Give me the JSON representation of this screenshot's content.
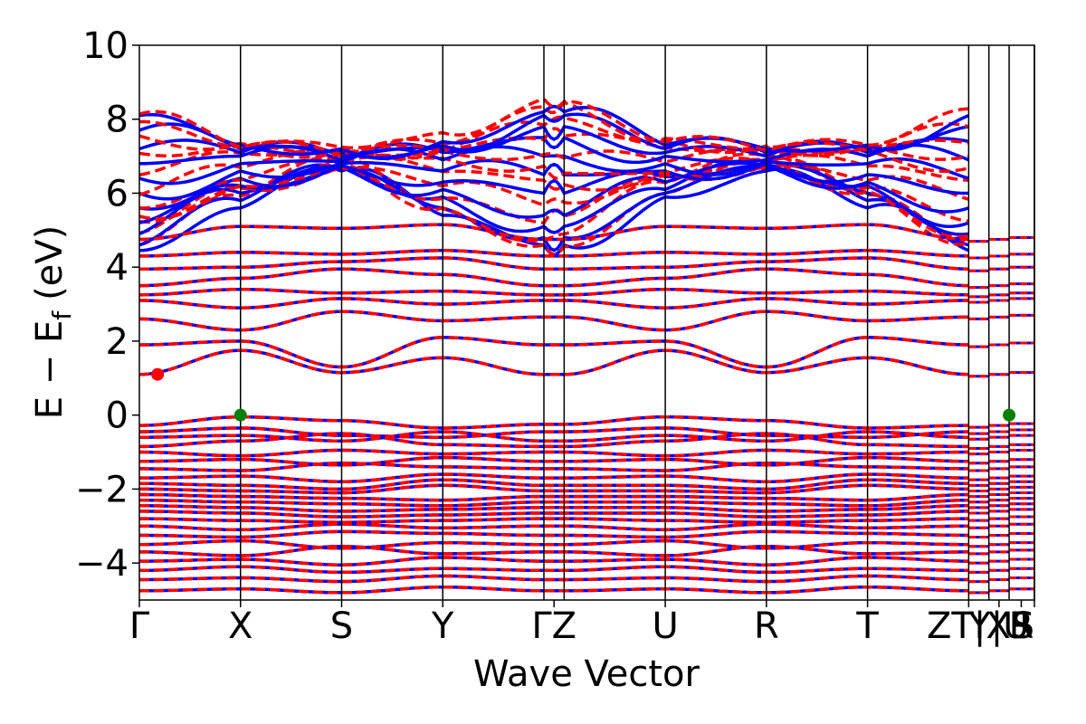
{
  "chart_data": {
    "type": "line",
    "title": "",
    "xlabel": "Wave Vector",
    "ylabel": {
      "main": "E − E",
      "subscript": "f",
      "unit": "(eV)"
    },
    "ylim": [
      -5,
      10
    ],
    "yticks": [
      {
        "value": 10,
        "label": "10"
      },
      {
        "value": 8,
        "label": "8"
      },
      {
        "value": 6,
        "label": "6"
      },
      {
        "value": 4,
        "label": "4"
      },
      {
        "value": 2,
        "label": "2"
      },
      {
        "value": 0,
        "label": "0"
      },
      {
        "value": -2,
        "label": "−2"
      },
      {
        "value": -4,
        "label": "−4"
      }
    ],
    "grid": false,
    "legend": "none",
    "kpath": {
      "xlim": [
        0,
        8.85
      ],
      "points": [
        {
          "label": "Γ",
          "x": 0
        },
        {
          "label": "X",
          "x": 1
        },
        {
          "label": "S",
          "x": 2
        },
        {
          "label": "Y",
          "x": 3
        },
        {
          "label": "Γ",
          "x": 4
        },
        {
          "label": "Z",
          "x": 4.2
        },
        {
          "label": "U",
          "x": 5.2
        },
        {
          "label": "R",
          "x": 6.2
        },
        {
          "label": "T",
          "x": 7.2
        },
        {
          "label": "Z",
          "x": 8.2
        },
        {
          "label": "T",
          "x": 8.2
        },
        {
          "label": "X",
          "x": 8.4
        },
        {
          "label": "Y",
          "x": 8.4
        },
        {
          "label": "U",
          "x": 8.6
        },
        {
          "label": "R",
          "x": 8.6
        },
        {
          "label": "S",
          "x": 8.85
        }
      ],
      "tick_labels": [
        {
          "label": "Γ",
          "x": 0
        },
        {
          "label": "X",
          "x": 1
        },
        {
          "label": "S",
          "x": 2
        },
        {
          "label": "Y",
          "x": 3
        },
        {
          "label": "ΓZ",
          "x": 4.1
        },
        {
          "label": "U",
          "x": 5.2
        },
        {
          "label": "R",
          "x": 6.2
        },
        {
          "label": "T",
          "x": 7.2
        },
        {
          "label": "ZT|X",
          "x": 8.2
        },
        {
          "label": "Y|U",
          "x": 8.5
        },
        {
          "label": "R",
          "x": 8.72
        },
        {
          "label": "S",
          "x": 8.85
        }
      ],
      "verticals": [
        1,
        2,
        3,
        4,
        4.2,
        5.2,
        6.2,
        7.2,
        8.2,
        8.4,
        8.6,
        8.85
      ]
    },
    "series": [
      {
        "style": "solid",
        "color": "#0000ff"
      },
      {
        "style": "dashed",
        "color": "#ff0000"
      }
    ],
    "valence": [
      [
        -0.28,
        -0.05,
        -0.15,
        -0.35,
        -0.25,
        -0.25,
        -0.05,
        -0.15,
        -0.35,
        -0.28
      ],
      [
        -0.45,
        -0.35,
        -0.55,
        -0.6,
        -0.45,
        -0.45,
        -0.35,
        -0.55,
        -0.6,
        -0.45
      ],
      [
        -0.6,
        -0.55,
        -0.7,
        -0.45,
        -0.7,
        -0.7,
        -0.55,
        -0.7,
        -0.45,
        -0.6
      ],
      [
        -0.85,
        -0.7,
        -0.5,
        -0.8,
        -0.85,
        -0.85,
        -0.7,
        -0.5,
        -0.8,
        -0.85
      ],
      [
        -1.0,
        -1.1,
        -0.95,
        -1.05,
        -1.0,
        -1.0,
        -1.1,
        -0.95,
        -1.05,
        -1.0
      ],
      [
        -1.25,
        -1.2,
        -1.35,
        -1.15,
        -1.25,
        -1.25,
        -1.2,
        -1.35,
        -1.15,
        -1.25
      ],
      [
        -1.45,
        -1.5,
        -1.3,
        -1.4,
        -1.45,
        -1.45,
        -1.5,
        -1.3,
        -1.4,
        -1.45
      ],
      [
        -1.7,
        -1.65,
        -1.8,
        -1.6,
        -1.7,
        -1.7,
        -1.65,
        -1.8,
        -1.6,
        -1.7
      ],
      [
        -1.85,
        -1.9,
        -2.0,
        -1.75,
        -1.9,
        -1.9,
        -1.9,
        -2.0,
        -1.75,
        -1.85
      ],
      [
        -2.0,
        -2.05,
        -2.1,
        -1.9,
        -2.05,
        -2.05,
        -2.05,
        -2.1,
        -1.9,
        -2.0
      ],
      [
        -2.15,
        -2.2,
        -2.25,
        -2.3,
        -2.2,
        -2.2,
        -2.2,
        -2.25,
        -2.3,
        -2.15
      ],
      [
        -2.3,
        -2.35,
        -2.4,
        -2.45,
        -2.35,
        -2.35,
        -2.35,
        -2.4,
        -2.45,
        -2.3
      ],
      [
        -2.45,
        -2.5,
        -2.6,
        -2.55,
        -2.5,
        -2.5,
        -2.5,
        -2.6,
        -2.55,
        -2.45
      ],
      [
        -2.6,
        -2.65,
        -2.75,
        -2.7,
        -2.65,
        -2.65,
        -2.65,
        -2.75,
        -2.7,
        -2.6
      ],
      [
        -2.8,
        -2.85,
        -2.9,
        -2.85,
        -2.8,
        -2.8,
        -2.85,
        -2.9,
        -2.85,
        -2.8
      ],
      [
        -3.0,
        -3.1,
        -2.95,
        -3.05,
        -3.0,
        -3.0,
        -3.1,
        -2.95,
        -3.05,
        -3.0
      ],
      [
        -3.25,
        -3.3,
        -3.15,
        -3.2,
        -3.25,
        -3.25,
        -3.3,
        -3.15,
        -3.2,
        -3.25
      ],
      [
        -3.5,
        -3.4,
        -3.6,
        -3.45,
        -3.5,
        -3.5,
        -3.4,
        -3.6,
        -3.45,
        -3.5
      ],
      [
        -3.7,
        -3.8,
        -3.55,
        -3.75,
        -3.7,
        -3.7,
        -3.8,
        -3.55,
        -3.75,
        -3.7
      ],
      [
        -3.95,
        -3.9,
        -4.05,
        -3.85,
        -3.95,
        -3.95,
        -3.9,
        -4.05,
        -3.85,
        -3.95
      ],
      [
        -4.2,
        -4.1,
        -4.25,
        -4.15,
        -4.2,
        -4.2,
        -4.1,
        -4.25,
        -4.15,
        -4.2
      ],
      [
        -4.45,
        -4.4,
        -4.5,
        -4.35,
        -4.45,
        -4.45,
        -4.4,
        -4.5,
        -4.35,
        -4.45
      ],
      [
        -4.75,
        -4.7,
        -4.8,
        -4.65,
        -4.75,
        -4.75,
        -4.7,
        -4.8,
        -4.65,
        -4.75
      ]
    ],
    "conduction": [
      [
        1.1,
        1.75,
        1.15,
        1.55,
        1.1,
        1.1,
        1.75,
        1.15,
        1.55,
        1.1
      ],
      [
        1.9,
        2.0,
        1.3,
        2.1,
        1.9,
        1.9,
        2.0,
        1.3,
        2.1,
        1.9
      ],
      [
        2.6,
        2.3,
        2.8,
        2.55,
        2.65,
        2.65,
        2.3,
        2.8,
        2.55,
        2.65
      ],
      [
        3.1,
        2.9,
        3.15,
        3.0,
        3.1,
        3.1,
        2.9,
        3.15,
        3.0,
        3.1
      ],
      [
        3.25,
        3.4,
        3.3,
        3.35,
        3.25,
        3.25,
        3.4,
        3.3,
        3.35,
        3.25
      ],
      [
        3.5,
        3.7,
        3.95,
        3.8,
        3.5,
        3.5,
        3.7,
        3.95,
        3.8,
        3.5
      ],
      [
        3.95,
        4.0,
        4.15,
        4.25,
        3.95,
        3.95,
        4.0,
        4.15,
        4.25,
        3.95
      ],
      [
        4.3,
        4.4,
        4.35,
        4.45,
        4.3,
        4.3,
        4.4,
        4.35,
        4.45,
        4.3
      ],
      [
        4.75,
        5.1,
        5.05,
        5.15,
        4.75,
        4.75,
        5.1,
        5.05,
        5.15,
        4.75
      ]
    ],
    "upper_bands": [
      [
        4.45,
        5.6,
        6.6,
        5.4,
        4.6,
        4.6,
        5.9,
        6.6,
        5.6,
        4.45
      ],
      [
        4.6,
        5.8,
        6.65,
        5.6,
        4.8,
        4.8,
        6.0,
        6.65,
        5.8,
        4.6
      ],
      [
        4.9,
        6.0,
        6.7,
        5.9,
        5.1,
        5.1,
        6.1,
        6.7,
        6.0,
        4.9
      ],
      [
        5.2,
        6.2,
        6.7,
        6.1,
        5.4,
        5.4,
        6.3,
        6.7,
        6.2,
        5.2
      ],
      [
        5.6,
        6.4,
        6.75,
        6.3,
        6.0,
        6.0,
        6.45,
        6.75,
        6.3,
        5.6
      ],
      [
        6.0,
        6.6,
        6.8,
        6.6,
        6.5,
        6.5,
        6.6,
        6.8,
        6.5,
        6.0
      ],
      [
        6.4,
        6.8,
        6.85,
        6.9,
        7.0,
        7.0,
        6.8,
        6.85,
        6.8,
        6.4
      ],
      [
        6.8,
        7.0,
        6.9,
        7.1,
        7.5,
        7.5,
        7.0,
        6.9,
        7.0,
        6.9
      ],
      [
        7.2,
        7.1,
        7.0,
        7.2,
        7.8,
        7.8,
        7.1,
        7.0,
        7.1,
        7.4
      ],
      [
        7.7,
        7.2,
        7.1,
        7.3,
        8.1,
        8.1,
        7.2,
        7.1,
        7.2,
        7.8
      ],
      [
        8.1,
        7.3,
        7.2,
        7.4,
        8.2,
        8.2,
        7.3,
        7.2,
        7.3,
        8.1
      ]
    ],
    "markers": [
      {
        "name": "cbm",
        "x": 0.18,
        "y": 1.1,
        "color": "#ff0000"
      },
      {
        "name": "vbm-x",
        "x": 1.0,
        "y": 0.0,
        "color": "#008000"
      },
      {
        "name": "vbm-u",
        "x": 8.6,
        "y": 0.0,
        "color": "#008000"
      }
    ]
  }
}
